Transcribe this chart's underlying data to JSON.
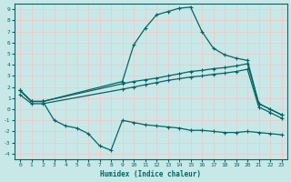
{
  "title": "",
  "xlabel": "Humidex (Indice chaleur)",
  "ylabel": "",
  "background_color": "#c8e8e8",
  "grid_color": "#f0c8c8",
  "line_color": "#006666",
  "xlim": [
    -0.5,
    23.5
  ],
  "ylim": [
    -4.5,
    9.5
  ],
  "xticks": [
    0,
    1,
    2,
    3,
    4,
    5,
    6,
    7,
    8,
    9,
    10,
    11,
    12,
    13,
    14,
    15,
    16,
    17,
    18,
    19,
    20,
    21,
    22,
    23
  ],
  "yticks": [
    -4,
    -3,
    -2,
    -1,
    0,
    1,
    2,
    3,
    4,
    5,
    6,
    7,
    8,
    9
  ],
  "series_peak": {
    "x": [
      0,
      1,
      2,
      9,
      10,
      11,
      12,
      13,
      14,
      15,
      16,
      17,
      18,
      19,
      20,
      21,
      22,
      23
    ],
    "y": [
      1.7,
      0.7,
      0.7,
      2.5,
      5.8,
      7.3,
      8.5,
      8.8,
      9.1,
      9.2,
      7.0,
      5.5,
      4.9,
      4.6,
      4.4,
      0.5,
      0.0,
      -0.5
    ]
  },
  "series_diag_upper": {
    "x": [
      0,
      1,
      2,
      9,
      10,
      11,
      12,
      13,
      14,
      15,
      16,
      17,
      18,
      19,
      20,
      21,
      22,
      23
    ],
    "y": [
      1.7,
      0.7,
      0.7,
      2.3,
      2.5,
      2.65,
      2.8,
      3.0,
      3.2,
      3.4,
      3.5,
      3.65,
      3.75,
      3.9,
      4.1,
      0.5,
      0.0,
      -0.5
    ]
  },
  "series_diag_lower": {
    "x": [
      0,
      1,
      2,
      9,
      10,
      11,
      12,
      13,
      14,
      15,
      16,
      17,
      18,
      19,
      20,
      21,
      22,
      23
    ],
    "y": [
      1.3,
      0.5,
      0.5,
      1.8,
      2.0,
      2.2,
      2.4,
      2.6,
      2.75,
      2.9,
      3.0,
      3.15,
      3.25,
      3.4,
      3.6,
      0.2,
      -0.3,
      -0.8
    ]
  },
  "series_wave": {
    "x": [
      0,
      1,
      2,
      3,
      4,
      5,
      6,
      7,
      8,
      9,
      10,
      11,
      12,
      13,
      14,
      15,
      16,
      17,
      18,
      19,
      20,
      21,
      22,
      23
    ],
    "y": [
      1.7,
      0.7,
      0.7,
      -1.0,
      -1.5,
      -1.7,
      -2.2,
      -3.3,
      -3.7,
      -1.0,
      -1.2,
      -1.4,
      -1.5,
      -1.6,
      -1.7,
      -1.9,
      -1.9,
      -2.0,
      -2.1,
      -2.1,
      -2.0,
      -2.1,
      -2.2,
      -2.3
    ]
  }
}
